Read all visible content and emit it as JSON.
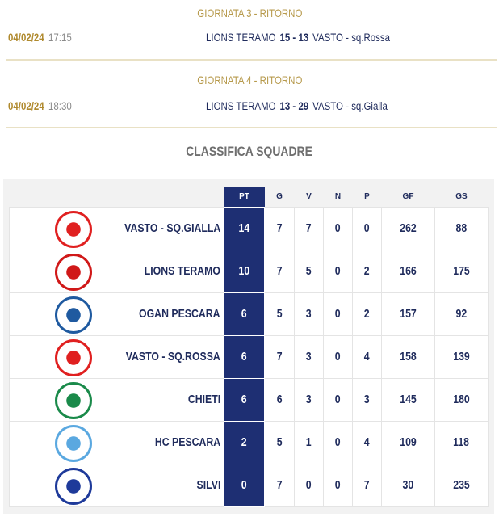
{
  "matches": [
    {
      "round": "GIORNATA 3 - RITORNO",
      "date": "04/02/24",
      "time": "17:15",
      "home": "LIONS TERAMO",
      "score": "15 - 13",
      "away": "VASTO - sq.Rossa"
    },
    {
      "round": "GIORNATA 4 - RITORNO",
      "date": "04/02/24",
      "time": "18:30",
      "home": "LIONS TERAMO",
      "score": "13 - 29",
      "away": "VASTO - sq.Gialla"
    }
  ],
  "standings": {
    "title": "CLASSIFICA SQUADRE",
    "headers": [
      "PT",
      "G",
      "V",
      "N",
      "P",
      "GF",
      "GS"
    ],
    "rows": [
      {
        "team": "VASTO - SQ.GIALLA",
        "pt": "14",
        "g": "7",
        "v": "7",
        "n": "0",
        "p": "0",
        "gf": "262",
        "gs": "88",
        "logo": "vasto-logo",
        "color": "#e02020"
      },
      {
        "team": "LIONS TERAMO",
        "pt": "10",
        "g": "7",
        "v": "5",
        "n": "0",
        "p": "2",
        "gf": "166",
        "gs": "175",
        "logo": "lions-teramo-logo",
        "color": "#d01818"
      },
      {
        "team": "OGAN PESCARA",
        "pt": "6",
        "g": "5",
        "v": "3",
        "n": "0",
        "p": "2",
        "gf": "157",
        "gs": "92",
        "logo": "ogan-pescara-logo",
        "color": "#1f5aa0"
      },
      {
        "team": "VASTO - SQ.ROSSA",
        "pt": "6",
        "g": "7",
        "v": "3",
        "n": "0",
        "p": "4",
        "gf": "158",
        "gs": "139",
        "logo": "vasto-logo",
        "color": "#e02020"
      },
      {
        "team": "CHIETI",
        "pt": "6",
        "g": "6",
        "v": "3",
        "n": "0",
        "p": "3",
        "gf": "145",
        "gs": "180",
        "logo": "chieti-logo",
        "color": "#1a8a4a"
      },
      {
        "team": "HC PESCARA",
        "pt": "2",
        "g": "5",
        "v": "1",
        "n": "0",
        "p": "4",
        "gf": "109",
        "gs": "118",
        "logo": "hc-pescara-logo",
        "color": "#5aa8e0"
      },
      {
        "team": "SILVI",
        "pt": "0",
        "g": "7",
        "v": "0",
        "n": "0",
        "p": "7",
        "gf": "30",
        "gs": "235",
        "logo": "silvi-logo",
        "color": "#1e3a9a"
      }
    ]
  }
}
